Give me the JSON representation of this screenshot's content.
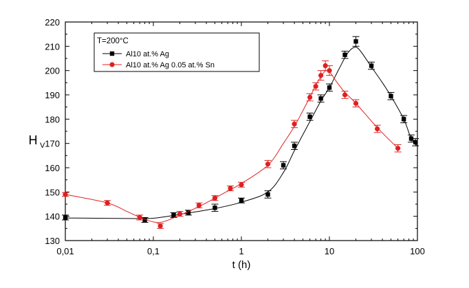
{
  "chart_data": {
    "type": "scatter",
    "title": "",
    "xlabel": "t (h)",
    "ylabel_main": "H",
    "ylabel_sub": "V",
    "x_scale": "log",
    "xlim": [
      0.01,
      100
    ],
    "ylim": [
      130,
      220
    ],
    "x_ticks": [
      {
        "value": 0.01,
        "label": "0,01"
      },
      {
        "value": 0.1,
        "label": "0,1"
      },
      {
        "value": 1,
        "label": "1"
      },
      {
        "value": 10,
        "label": "10"
      },
      {
        "value": 100,
        "label": "100"
      }
    ],
    "y_ticks": [
      130,
      140,
      150,
      160,
      170,
      180,
      190,
      200,
      210,
      220
    ],
    "grid": false,
    "legend": {
      "placement": "top-left",
      "title": "T=200°C"
    },
    "series": [
      {
        "name": "Al10 at.% Ag",
        "color": "#000000",
        "marker": "square",
        "points": [
          {
            "x": 0.01,
            "y": 139.5,
            "err": 1
          },
          {
            "x": 0.08,
            "y": 138.5,
            "err": 1
          },
          {
            "x": 0.17,
            "y": 140.5,
            "err": 1
          },
          {
            "x": 0.25,
            "y": 141.5,
            "err": 1
          },
          {
            "x": 0.5,
            "y": 143.5,
            "err": 1.5
          },
          {
            "x": 1,
            "y": 146.5,
            "err": 1
          },
          {
            "x": 2,
            "y": 149,
            "err": 1.5
          },
          {
            "x": 3,
            "y": 161,
            "err": 1.5
          },
          {
            "x": 4,
            "y": 169,
            "err": 1.5
          },
          {
            "x": 6,
            "y": 181,
            "err": 1.5
          },
          {
            "x": 8,
            "y": 188.5,
            "err": 1.5
          },
          {
            "x": 10,
            "y": 193,
            "err": 1.5
          },
          {
            "x": 15,
            "y": 206.5,
            "err": 1.5
          },
          {
            "x": 20,
            "y": 212,
            "err": 2
          },
          {
            "x": 30,
            "y": 202,
            "err": 1.5
          },
          {
            "x": 50,
            "y": 189.5,
            "err": 1.5
          },
          {
            "x": 70,
            "y": 180,
            "err": 1.5
          },
          {
            "x": 85,
            "y": 172,
            "err": 1.5
          },
          {
            "x": 95,
            "y": 170.5,
            "err": 1.5
          }
        ],
        "fit": [
          {
            "x": 0.01,
            "y": 139.3
          },
          {
            "x": 0.05,
            "y": 139.1
          },
          {
            "x": 0.1,
            "y": 139.2
          },
          {
            "x": 0.2,
            "y": 140.8
          },
          {
            "x": 0.5,
            "y": 143.2
          },
          {
            "x": 1,
            "y": 145.8
          },
          {
            "x": 2,
            "y": 150
          },
          {
            "x": 3,
            "y": 158
          },
          {
            "x": 4,
            "y": 167
          },
          {
            "x": 6,
            "y": 179
          },
          {
            "x": 8,
            "y": 187.5
          },
          {
            "x": 10,
            "y": 193
          },
          {
            "x": 13,
            "y": 201
          },
          {
            "x": 16,
            "y": 207
          },
          {
            "x": 19,
            "y": 209.5
          },
          {
            "x": 22,
            "y": 208.5
          },
          {
            "x": 30,
            "y": 201.5
          },
          {
            "x": 40,
            "y": 195
          },
          {
            "x": 50,
            "y": 189.5
          },
          {
            "x": 70,
            "y": 180
          },
          {
            "x": 85,
            "y": 172
          },
          {
            "x": 100,
            "y": 169
          }
        ]
      },
      {
        "name": "Al10 at.% Ag 0.05 at.% Sn",
        "color": "#e02020",
        "marker": "circle",
        "points": [
          {
            "x": 0.01,
            "y": 149,
            "err": 0.8
          },
          {
            "x": 0.03,
            "y": 145.5,
            "err": 1
          },
          {
            "x": 0.07,
            "y": 139.5,
            "err": 1
          },
          {
            "x": 0.12,
            "y": 136,
            "err": 1
          },
          {
            "x": 0.2,
            "y": 141,
            "err": 1
          },
          {
            "x": 0.33,
            "y": 144.5,
            "err": 1
          },
          {
            "x": 0.5,
            "y": 147.5,
            "err": 1
          },
          {
            "x": 0.75,
            "y": 151.5,
            "err": 1
          },
          {
            "x": 1,
            "y": 153,
            "err": 1
          },
          {
            "x": 2,
            "y": 161.5,
            "err": 1.5
          },
          {
            "x": 4,
            "y": 178,
            "err": 1.5
          },
          {
            "x": 6,
            "y": 189,
            "err": 1.5
          },
          {
            "x": 7,
            "y": 193.5,
            "err": 1.5
          },
          {
            "x": 8,
            "y": 198,
            "err": 2
          },
          {
            "x": 9,
            "y": 202,
            "err": 2
          },
          {
            "x": 10,
            "y": 200,
            "err": 2
          },
          {
            "x": 15,
            "y": 190,
            "err": 1.5
          },
          {
            "x": 20,
            "y": 186.5,
            "err": 1.5
          },
          {
            "x": 35,
            "y": 176,
            "err": 1.5
          },
          {
            "x": 60,
            "y": 168,
            "err": 1.5
          }
        ],
        "fit": [
          {
            "x": 0.01,
            "y": 149
          },
          {
            "x": 0.03,
            "y": 145.5
          },
          {
            "x": 0.05,
            "y": 142
          },
          {
            "x": 0.08,
            "y": 138.8
          },
          {
            "x": 0.12,
            "y": 137.5
          },
          {
            "x": 0.2,
            "y": 140.5
          },
          {
            "x": 0.33,
            "y": 144
          },
          {
            "x": 0.5,
            "y": 147.5
          },
          {
            "x": 0.75,
            "y": 151
          },
          {
            "x": 1,
            "y": 153.5
          },
          {
            "x": 2,
            "y": 161
          },
          {
            "x": 3,
            "y": 170
          },
          {
            "x": 4,
            "y": 177
          },
          {
            "x": 5,
            "y": 183.5
          },
          {
            "x": 6,
            "y": 189
          },
          {
            "x": 7,
            "y": 194
          },
          {
            "x": 8,
            "y": 197.5
          },
          {
            "x": 9,
            "y": 199.8
          },
          {
            "x": 10,
            "y": 199.5
          },
          {
            "x": 12,
            "y": 195.5
          },
          {
            "x": 15,
            "y": 191
          },
          {
            "x": 20,
            "y": 186.5
          },
          {
            "x": 35,
            "y": 176.5
          },
          {
            "x": 60,
            "y": 168
          }
        ]
      }
    ]
  }
}
